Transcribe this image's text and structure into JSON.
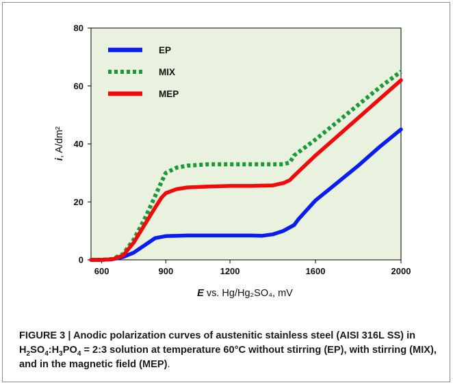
{
  "chart_data": {
    "type": "line",
    "title": "",
    "xlabel": {
      "italic_part": "E",
      "rest": " vs. Hg/Hg₂SO₄, mV"
    },
    "ylabel": {
      "italic_part": "i",
      "rest": ", A/dm²"
    },
    "xlim": [
      550,
      2000
    ],
    "ylim": [
      0,
      80
    ],
    "x_ticks": [
      "600",
      "900",
      "1200",
      "1600",
      "2000"
    ],
    "x_tick_values": [
      600,
      900,
      1200,
      1600,
      2000
    ],
    "y_ticks": [
      "0",
      "20",
      "40",
      "60",
      "80"
    ],
    "y_tick_values": [
      0,
      20,
      40,
      60,
      80
    ],
    "grid": false,
    "legend_position": "top-left",
    "plot_background": "#e9f1df",
    "series": [
      {
        "name": "EP",
        "color": "#0a1df0",
        "dash": "solid",
        "x": [
          550,
          600,
          650,
          700,
          750,
          800,
          850,
          900,
          1000,
          1100,
          1200,
          1300,
          1350,
          1400,
          1450,
          1500,
          1520,
          1600,
          1700,
          1800,
          1900,
          2000
        ],
        "y": [
          0,
          0,
          0.2,
          1,
          2.5,
          5,
          7.5,
          8.2,
          8.4,
          8.4,
          8.4,
          8.4,
          8.3,
          8.8,
          10,
          12,
          14,
          20.5,
          26.5,
          32.5,
          39,
          45
        ]
      },
      {
        "name": "MIX",
        "color": "#1a9a36",
        "dash": "dotted",
        "x": [
          550,
          600,
          650,
          700,
          750,
          800,
          850,
          880,
          900,
          950,
          1000,
          1100,
          1200,
          1300,
          1400,
          1450,
          1480,
          1500,
          1600,
          1700,
          1800,
          1900,
          2000
        ],
        "y": [
          0,
          0,
          0.3,
          2,
          7,
          14,
          22,
          27,
          30,
          31.8,
          32.5,
          33,
          33,
          33,
          33,
          33,
          33.6,
          36,
          41.5,
          47.5,
          53.5,
          59.5,
          65
        ]
      },
      {
        "name": "MEP",
        "color": "#f20a0a",
        "dash": "solid",
        "x": [
          550,
          600,
          650,
          700,
          750,
          800,
          850,
          880,
          900,
          950,
          1000,
          1100,
          1200,
          1300,
          1400,
          1450,
          1480,
          1500,
          1600,
          1700,
          1800,
          1900,
          2000
        ],
        "y": [
          0,
          0,
          0.2,
          1.5,
          6,
          12,
          18,
          21.5,
          23,
          24.4,
          25,
          25.3,
          25.5,
          25.5,
          25.7,
          26.5,
          27.5,
          29,
          36,
          42.5,
          49,
          55.5,
          62
        ]
      }
    ]
  },
  "caption": {
    "lead": "FIGURE 3 | Anodic polarization curves of austenitic stainless steel (AISI 316L SS) in H",
    "sub1": "2",
    "mid1": "SO",
    "sub2": "4",
    "mid2": ":H",
    "sub3": "3",
    "mid3": "PO",
    "sub4": "4",
    "rest": " = 2:3 solution at temperature 60°C without stirring (EP), with stirring (MIX), and in the magnetic field (MEP)",
    "end": "."
  }
}
